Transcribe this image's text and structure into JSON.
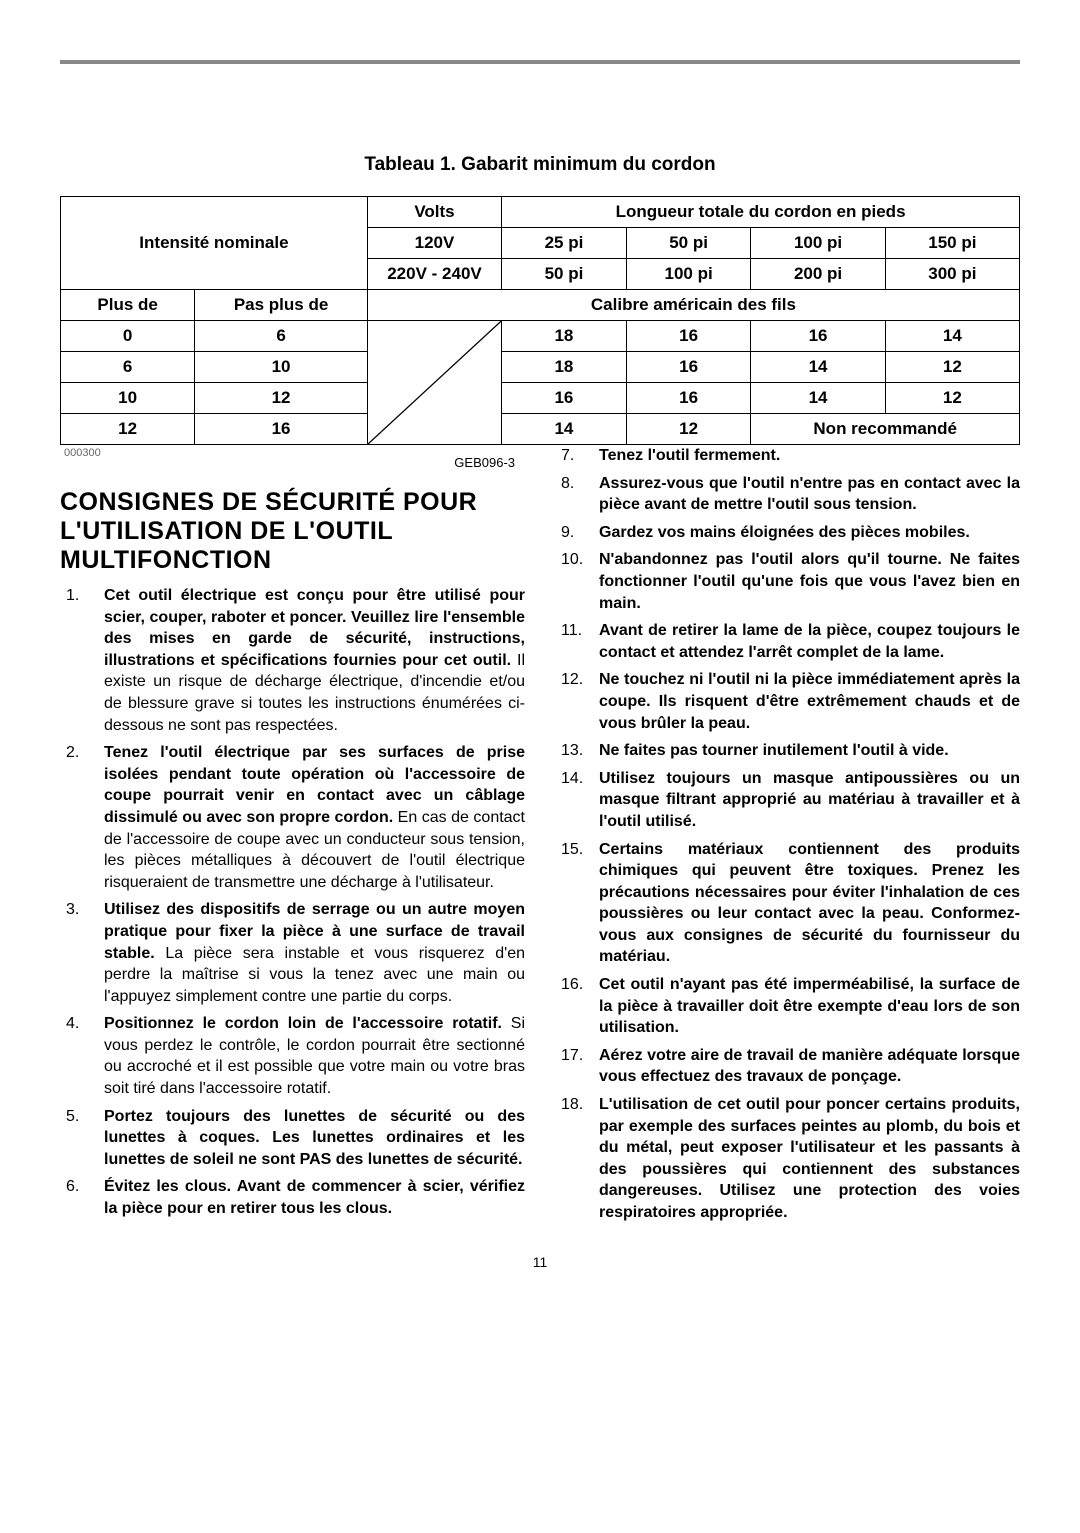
{
  "table": {
    "title": "Tableau 1. Gabarit minimum du cordon",
    "header_intensity": "Intensité nominale",
    "header_volts": "Volts",
    "header_length": "Longueur totale du cordon en pieds",
    "row_120v": {
      "label": "120V",
      "vals": [
        "25 pi",
        "50 pi",
        "100 pi",
        "150 pi"
      ]
    },
    "row_220v": {
      "label": "220V - 240V",
      "vals": [
        "50 pi",
        "100 pi",
        "200 pi",
        "300 pi"
      ]
    },
    "more_than": "Plus de",
    "not_more_than": "Pas plus de",
    "gauge_header": "Calibre américain des fils",
    "data": [
      {
        "lo": "0",
        "hi": "6",
        "g": [
          "18",
          "16",
          "16",
          "14"
        ]
      },
      {
        "lo": "6",
        "hi": "10",
        "g": [
          "18",
          "16",
          "14",
          "12"
        ]
      },
      {
        "lo": "10",
        "hi": "12",
        "g": [
          "16",
          "16",
          "14",
          "12"
        ]
      },
      {
        "lo": "12",
        "hi": "16",
        "g": [
          "14",
          "12"
        ],
        "not_rec": "Non recommandé"
      }
    ],
    "footnote": "000300"
  },
  "code": "GEB096-3",
  "heading": "CONSIGNES DE SÉCURITÉ POUR L'UTILISATION DE L'OUTIL MULTIFONCTION",
  "items_left": [
    {
      "bold": "Cet outil électrique est conçu pour être utilisé pour scier, couper, raboter et poncer. Veuillez lire l'ensemble des mises en garde de sécurité, instructions, illustrations et spécifications fournies pour cet outil.",
      "plain": " Il existe un risque de décharge électrique, d'incendie et/ou de blessure grave si toutes les instructions énumérées ci-dessous ne sont pas respectées."
    },
    {
      "bold": "Tenez l'outil électrique par ses surfaces de prise isolées pendant toute opération où l'accessoire de coupe pourrait venir en contact avec un câblage dissimulé ou avec son propre cordon.",
      "plain": " En cas de contact de l'accessoire de coupe avec un conducteur sous tension, les pièces métalliques à découvert de l'outil électrique risqueraient de transmettre une décharge à l'utilisateur."
    },
    {
      "bold": "Utilisez des dispositifs de serrage ou un autre moyen pratique pour fixer la pièce à une surface de travail stable.",
      "plain": " La pièce sera instable et vous risquerez d'en perdre la maîtrise si vous la tenez avec une main ou l'appuyez simplement contre une partie du corps."
    },
    {
      "bold": "Positionnez le cordon loin de l'accessoire rotatif.",
      "plain": " Si vous perdez le contrôle, le cordon pourrait être sectionné ou accroché et il est possible que votre main ou votre bras soit tiré dans l'accessoire rotatif."
    },
    {
      "bold": "Portez toujours des lunettes de sécurité ou des lunettes à coques. Les lunettes ordinaires et les lunettes de soleil ne sont PAS des lunettes de sécurité.",
      "plain": ""
    },
    {
      "bold": "Évitez les clous. Avant de commencer à scier, vérifiez la pièce pour en retirer tous les clous.",
      "plain": ""
    }
  ],
  "items_right": [
    {
      "bold": "Tenez l'outil fermement.",
      "plain": ""
    },
    {
      "bold": "Assurez-vous que l'outil n'entre pas en contact avec la pièce avant de mettre l'outil sous tension.",
      "plain": ""
    },
    {
      "bold": "Gardez vos mains éloignées des pièces mobiles.",
      "plain": ""
    },
    {
      "bold": "N'abandonnez pas l'outil alors qu'il tourne. Ne faites fonctionner l'outil qu'une fois que vous l'avez bien en main.",
      "plain": ""
    },
    {
      "bold": "Avant de retirer la lame de la pièce, coupez toujours le contact et attendez l'arrêt complet de la lame.",
      "plain": ""
    },
    {
      "bold": "Ne touchez ni l'outil ni la pièce immédiatement après la coupe. Ils risquent d'être extrêmement chauds et de vous brûler la peau.",
      "plain": ""
    },
    {
      "bold": "Ne faites pas tourner inutilement l'outil à vide.",
      "plain": ""
    },
    {
      "bold": "Utilisez toujours un masque antipoussières ou un masque filtrant approprié au matériau à travailler et à l'outil utilisé.",
      "plain": ""
    },
    {
      "bold": "Certains matériaux contiennent des produits chimiques qui peuvent être toxiques. Prenez les précautions nécessaires pour éviter l'inhalation de ces poussières ou leur contact avec la peau. Conformez-vous aux consignes de sécurité du fournisseur du matériau.",
      "plain": ""
    },
    {
      "bold": "Cet outil n'ayant pas été imperméabilisé, la surface de la pièce à travailler doit être exempte d'eau lors de son utilisation.",
      "plain": ""
    },
    {
      "bold": "Aérez votre aire de travail de manière adéquate lorsque vous effectuez des travaux de ponçage.",
      "plain": ""
    },
    {
      "bold": "L'utilisation de cet outil pour poncer certains produits, par exemple des surfaces peintes au plomb, du bois et du métal, peut exposer l'utilisateur et les passants à des poussières qui contiennent des substances dangereuses. Utilisez une protection des voies respiratoires appropriée.",
      "plain": ""
    }
  ],
  "page_number": "11"
}
